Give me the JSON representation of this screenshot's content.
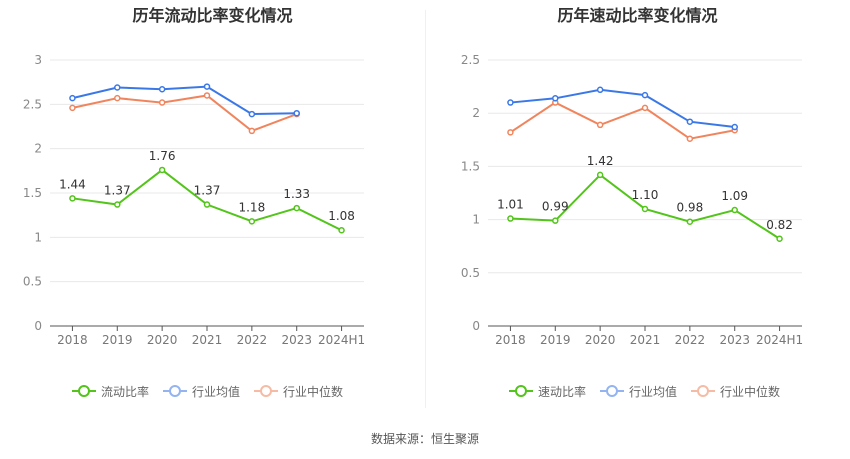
{
  "source_label": "数据来源：恒生聚源",
  "chart_data": [
    {
      "type": "line",
      "title": "历年流动比率变化情况",
      "categories": [
        "2018",
        "2019",
        "2020",
        "2021",
        "2022",
        "2023",
        "2024H1"
      ],
      "y_ticks": [
        "0",
        "0.5",
        "1",
        "1.5",
        "2",
        "2.5",
        "3"
      ],
      "ylim": [
        0,
        3
      ],
      "grid": true,
      "legend_position": "bottom",
      "series": [
        {
          "name": "流动比率",
          "color": "#52c41a",
          "values": [
            1.44,
            1.37,
            1.76,
            1.37,
            1.18,
            1.33,
            1.08
          ],
          "labels": [
            "1.44",
            "1.37",
            "1.76",
            "1.37",
            "1.18",
            "1.33",
            "1.08"
          ]
        },
        {
          "name": "行业均值",
          "color": "#3b78e7",
          "values": [
            2.57,
            2.69,
            2.67,
            2.7,
            2.39,
            2.4,
            null
          ]
        },
        {
          "name": "行业中位数",
          "color": "#f0855d",
          "values": [
            2.46,
            2.57,
            2.52,
            2.6,
            2.2,
            2.39,
            null
          ]
        }
      ]
    },
    {
      "type": "line",
      "title": "历年速动比率变化情况",
      "categories": [
        "2018",
        "2019",
        "2020",
        "2021",
        "2022",
        "2023",
        "2024H1"
      ],
      "y_ticks": [
        "0",
        "0.5",
        "1",
        "1.5",
        "2",
        "2.5"
      ],
      "ylim": [
        0,
        2.5
      ],
      "grid": true,
      "legend_position": "bottom",
      "series": [
        {
          "name": "速动比率",
          "color": "#52c41a",
          "values": [
            1.01,
            0.99,
            1.42,
            1.1,
            0.98,
            1.09,
            0.82
          ],
          "labels": [
            "1.01",
            "0.99",
            "1.42",
            "1.10",
            "0.98",
            "1.09",
            "0.82"
          ]
        },
        {
          "name": "行业均值",
          "color": "#3b78e7",
          "values": [
            2.1,
            2.14,
            2.22,
            2.17,
            1.92,
            1.87,
            null
          ]
        },
        {
          "name": "行业中位数",
          "color": "#f0855d",
          "values": [
            1.82,
            2.1,
            1.89,
            2.05,
            1.76,
            1.84,
            null
          ]
        }
      ]
    }
  ]
}
